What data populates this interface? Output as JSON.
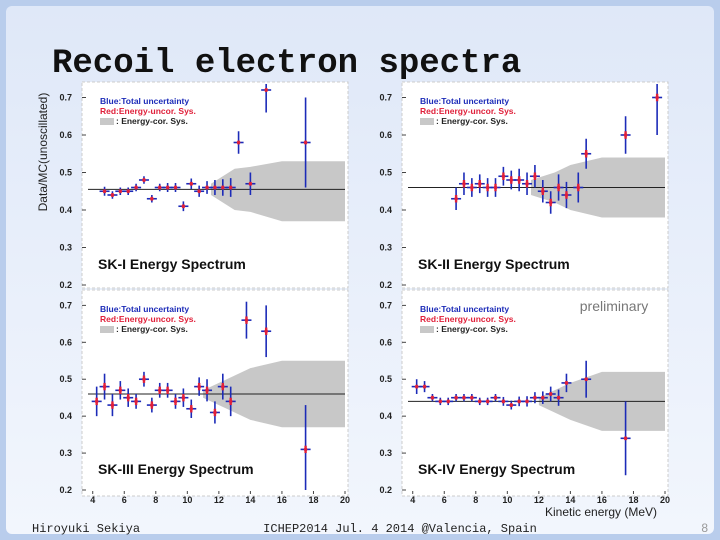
{
  "title": "Recoil electron spectra",
  "y_label": "Data/MC(unoscillated)",
  "x_label": "Kinetic energy (MeV)",
  "annotation": "preliminary",
  "footer": {
    "author": "Hiroyuki Sekiya",
    "event": "ICHEP2014  Jul. 4 2014  @Valencia, Spain",
    "page": "8"
  },
  "chart_data": [
    {
      "type": "errorbar",
      "title": "SK-I Energy Spectrum",
      "legend": [
        "Blue:Total uncertainty",
        "Red:Energy-uncor. Sys.",
        ": Energy-cor. Sys."
      ],
      "color": "#1c2bb8",
      "sys_color": "#e0203a",
      "band_color": "#c8c8c8",
      "x": [
        4.75,
        5.25,
        5.75,
        6.25,
        6.75,
        7.25,
        7.75,
        8.25,
        8.75,
        9.25,
        9.75,
        10.25,
        10.75,
        11.25,
        11.75,
        12.25,
        12.75,
        13.25,
        14,
        15,
        17.5
      ],
      "values": [
        0.45,
        0.44,
        0.45,
        0.45,
        0.46,
        0.48,
        0.43,
        0.46,
        0.46,
        0.46,
        0.41,
        0.47,
        0.45,
        0.46,
        0.46,
        0.46,
        0.46,
        0.58,
        0.47,
        0.72,
        0.58
      ],
      "errors": [
        0.012,
        0.01,
        0.01,
        0.01,
        0.01,
        0.01,
        0.01,
        0.01,
        0.012,
        0.012,
        0.013,
        0.014,
        0.015,
        0.017,
        0.02,
        0.022,
        0.025,
        0.03,
        0.03,
        0.06,
        0.12
      ],
      "sys_errors": [
        0.005,
        0.005,
        0.005,
        0.005,
        0.005,
        0.005,
        0.005,
        0.005,
        0.005,
        0.005,
        0.005,
        0.005,
        0.005,
        0.005,
        0.005,
        0.005,
        0.005,
        0.005,
        0.005,
        0.005,
        0.005
      ],
      "reference_line": 0.455,
      "band_x": [
        11.5,
        13,
        14,
        16,
        20
      ],
      "band_upper": [
        0.47,
        0.51,
        0.515,
        0.53,
        0.53
      ],
      "band_lower": [
        0.44,
        0.4,
        0.395,
        0.37,
        0.37
      ],
      "xlim": [
        3.7,
        20
      ],
      "ylim": [
        0.2,
        0.72
      ],
      "yticks": [
        0.2,
        0.3,
        0.4,
        0.5,
        0.6,
        0.7
      ]
    },
    {
      "type": "errorbar",
      "title": "SK-II Energy Spectrum",
      "legend": [
        "Blue:Total uncertainty",
        "Red:Energy-uncor. Sys.",
        ": Energy-cor. Sys."
      ],
      "color": "#1c2bb8",
      "sys_color": "#e0203a",
      "band_color": "#c8c8c8",
      "x": [
        6.75,
        7.25,
        7.75,
        8.25,
        8.75,
        9.25,
        9.75,
        10.25,
        10.75,
        11.25,
        11.75,
        12.25,
        12.75,
        13.25,
        13.75,
        14.5,
        15,
        17.5,
        19.5
      ],
      "values": [
        0.43,
        0.47,
        0.46,
        0.47,
        0.46,
        0.46,
        0.49,
        0.48,
        0.48,
        0.47,
        0.49,
        0.45,
        0.42,
        0.46,
        0.44,
        0.46,
        0.55,
        0.6,
        0.7
      ],
      "errors": [
        0.03,
        0.03,
        0.025,
        0.025,
        0.025,
        0.025,
        0.025,
        0.025,
        0.03,
        0.03,
        0.03,
        0.03,
        0.03,
        0.035,
        0.035,
        0.04,
        0.04,
        0.05,
        0.1
      ],
      "sys_errors": [
        0.01,
        0.01,
        0.01,
        0.01,
        0.01,
        0.01,
        0.01,
        0.01,
        0.01,
        0.01,
        0.01,
        0.01,
        0.01,
        0.01,
        0.01,
        0.01,
        0.01,
        0.01,
        0.01
      ],
      "reference_line": 0.46,
      "band_x": [
        11.5,
        13,
        14,
        16,
        20
      ],
      "band_upper": [
        0.48,
        0.5,
        0.52,
        0.54,
        0.54
      ],
      "band_lower": [
        0.44,
        0.42,
        0.4,
        0.38,
        0.38
      ],
      "xlim": [
        3.7,
        20
      ],
      "ylim": [
        0.2,
        0.72
      ],
      "yticks": [
        0.2,
        0.3,
        0.4,
        0.5,
        0.6,
        0.7
      ]
    },
    {
      "type": "errorbar",
      "title": "SK-III Energy Spectrum",
      "legend": [
        "Blue:Total uncertainty",
        "Red:Energy-uncor. Sys.",
        ": Energy-cor. Sys."
      ],
      "color": "#1c2bb8",
      "sys_color": "#e0203a",
      "band_color": "#c8c8c8",
      "x": [
        4.25,
        4.75,
        5.25,
        5.75,
        6.25,
        6.75,
        7.25,
        7.75,
        8.25,
        8.75,
        9.25,
        9.75,
        10.25,
        10.75,
        11.25,
        11.75,
        12.25,
        12.75,
        13.75,
        15,
        17.5
      ],
      "values": [
        0.44,
        0.48,
        0.43,
        0.47,
        0.45,
        0.44,
        0.5,
        0.43,
        0.47,
        0.47,
        0.44,
        0.45,
        0.42,
        0.48,
        0.47,
        0.41,
        0.48,
        0.44,
        0.66,
        0.63,
        0.31
      ],
      "errors": [
        0.04,
        0.035,
        0.03,
        0.025,
        0.025,
        0.02,
        0.02,
        0.02,
        0.02,
        0.02,
        0.02,
        0.025,
        0.025,
        0.025,
        0.03,
        0.03,
        0.035,
        0.04,
        0.05,
        0.07,
        0.12
      ],
      "sys_errors": [
        0.01,
        0.01,
        0.01,
        0.01,
        0.01,
        0.01,
        0.01,
        0.01,
        0.01,
        0.01,
        0.01,
        0.01,
        0.01,
        0.01,
        0.01,
        0.01,
        0.01,
        0.01,
        0.01,
        0.01,
        0.01
      ],
      "reference_line": 0.46,
      "band_x": [
        11,
        12.5,
        14,
        16,
        20
      ],
      "band_upper": [
        0.47,
        0.5,
        0.53,
        0.55,
        0.55
      ],
      "band_lower": [
        0.45,
        0.42,
        0.39,
        0.37,
        0.37
      ],
      "xlim": [
        3.7,
        20
      ],
      "ylim": [
        0.2,
        0.72
      ],
      "xticks": [
        4,
        6,
        8,
        10,
        12,
        14,
        16,
        18,
        20
      ],
      "yticks": [
        0.2,
        0.3,
        0.4,
        0.5,
        0.6,
        0.7
      ]
    },
    {
      "type": "errorbar",
      "title": "SK-IV Energy Spectrum",
      "legend": [
        "Blue:Total uncertainty",
        "Red:Energy-uncor. Sys.",
        ": Energy-cor. Sys."
      ],
      "color": "#1c2bb8",
      "sys_color": "#e0203a",
      "band_color": "#c8c8c8",
      "x": [
        4.25,
        4.75,
        5.25,
        5.75,
        6.25,
        6.75,
        7.25,
        7.75,
        8.25,
        8.75,
        9.25,
        9.75,
        10.25,
        10.75,
        11.25,
        11.75,
        12.25,
        12.75,
        13.25,
        13.75,
        15,
        17.5
      ],
      "values": [
        0.48,
        0.48,
        0.45,
        0.44,
        0.44,
        0.45,
        0.45,
        0.45,
        0.44,
        0.44,
        0.45,
        0.44,
        0.43,
        0.44,
        0.44,
        0.45,
        0.45,
        0.46,
        0.45,
        0.49,
        0.5,
        0.34
      ],
      "errors": [
        0.02,
        0.015,
        0.01,
        0.01,
        0.01,
        0.01,
        0.01,
        0.01,
        0.01,
        0.01,
        0.01,
        0.012,
        0.012,
        0.013,
        0.014,
        0.015,
        0.017,
        0.02,
        0.022,
        0.025,
        0.05,
        0.1
      ],
      "sys_errors": [
        0.005,
        0.005,
        0.005,
        0.005,
        0.005,
        0.005,
        0.005,
        0.005,
        0.005,
        0.005,
        0.005,
        0.005,
        0.005,
        0.005,
        0.005,
        0.005,
        0.005,
        0.005,
        0.005,
        0.005,
        0.005,
        0.005
      ],
      "reference_line": 0.44,
      "band_x": [
        12,
        13,
        14,
        16,
        20
      ],
      "band_upper": [
        0.45,
        0.47,
        0.49,
        0.52,
        0.52
      ],
      "band_lower": [
        0.43,
        0.41,
        0.39,
        0.36,
        0.36
      ],
      "xlim": [
        3.7,
        20
      ],
      "ylim": [
        0.2,
        0.72
      ],
      "xticks": [
        4,
        6,
        8,
        10,
        12,
        14,
        16,
        18,
        20
      ],
      "yticks": [
        0.2,
        0.3,
        0.4,
        0.5,
        0.6,
        0.7
      ]
    }
  ]
}
